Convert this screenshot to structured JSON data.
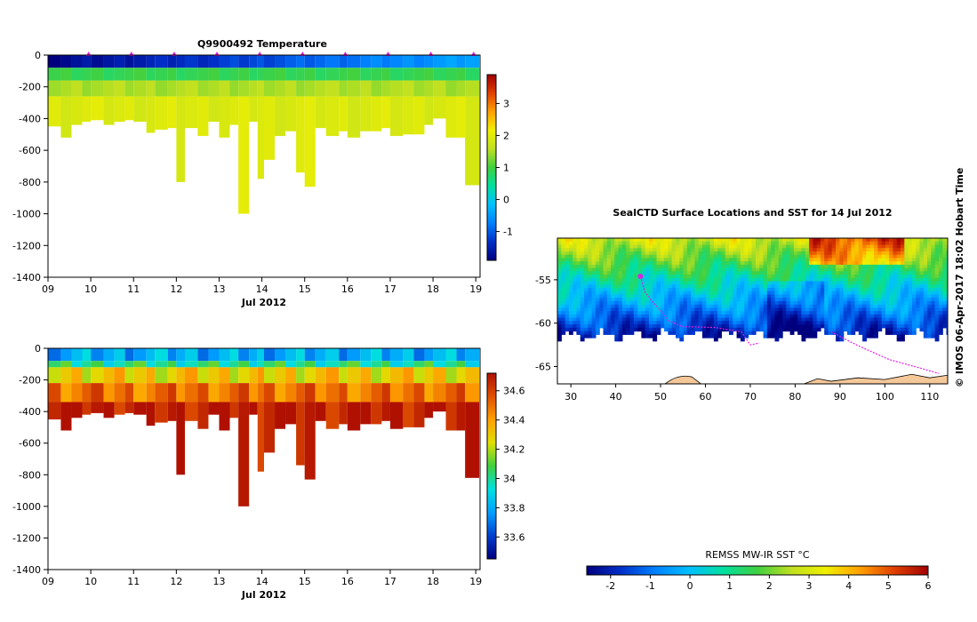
{
  "colors": {
    "temperature_scale": [
      "#00007f",
      "#0030c8",
      "#0080ff",
      "#00c0ff",
      "#00e0a0",
      "#40d040",
      "#c0e020",
      "#f0f000",
      "#ffa000",
      "#e04000",
      "#a00000"
    ],
    "salinity_scale": [
      "#00007f",
      "#0040d0",
      "#00a0ff",
      "#00e0e0",
      "#40d040",
      "#e0e000",
      "#ffa000",
      "#e05000",
      "#b01000"
    ],
    "sst_scale": [
      "#00007f",
      "#0030c8",
      "#0080ff",
      "#00c0ff",
      "#00e0a0",
      "#40d040",
      "#c0e020",
      "#f0f000",
      "#ffa000",
      "#e04000",
      "#a00000"
    ],
    "track": "#e020e0",
    "land": "#f5c89a",
    "frame": "#000000"
  },
  "chart_data": [
    {
      "type": "heatmap",
      "title": "Q9900492  Temperature",
      "xlabel": "Jul 2012",
      "ylabel": "",
      "xlim": [
        9,
        19.1
      ],
      "ylim": [
        -1400,
        0
      ],
      "x_ticks": [
        "09",
        "10",
        "11",
        "12",
        "13",
        "14",
        "15",
        "16",
        "17",
        "18",
        "19"
      ],
      "y_ticks": [
        "0",
        "-200",
        "-400",
        "-600",
        "-800",
        "-1000",
        "-1200",
        "-1400"
      ],
      "profile_markers_day": [
        10,
        11,
        12,
        13,
        14,
        15,
        16,
        17,
        18,
        19
      ],
      "profile_days": [
        9.0,
        9.3,
        9.55,
        9.8,
        10.0,
        10.3,
        10.55,
        10.8,
        11.0,
        11.3,
        11.5,
        11.8,
        12.0,
        12.2,
        12.5,
        12.75,
        13.0,
        13.25,
        13.45,
        13.7,
        13.9,
        14.05,
        14.3,
        14.55,
        14.8,
        15.0,
        15.25,
        15.5,
        15.8,
        16.0,
        16.3,
        16.55,
        16.8,
        17.0,
        17.3,
        17.55,
        17.8,
        18.0,
        18.3,
        18.55,
        18.75
      ],
      "profile_max_depth": [
        -450,
        -520,
        -440,
        -420,
        -410,
        -440,
        -420,
        -410,
        -420,
        -490,
        -470,
        -460,
        -800,
        -460,
        -510,
        -420,
        -520,
        -440,
        -1000,
        -420,
        -780,
        -660,
        -510,
        -480,
        -740,
        -830,
        -460,
        -510,
        -480,
        -520,
        -480,
        -480,
        -460,
        -510,
        -500,
        -500,
        -440,
        -400,
        -520,
        -520,
        -820
      ],
      "layers": [
        {
          "from": 0,
          "to": -80,
          "value": -1.5,
          "note": "surface layer, -1.8 early to -0.5 late"
        },
        {
          "from": -80,
          "to": -160,
          "value": 0.9
        },
        {
          "from": -160,
          "to": -260,
          "value": 1.5
        },
        {
          "from": -260,
          "to": "bottom",
          "value": 1.9
        }
      ],
      "colorbar": {
        "min": -1.9,
        "max": 3.9,
        "ticks": [
          "3",
          "2",
          "1",
          "0",
          "-1"
        ],
        "tick_values": [
          3,
          2,
          1,
          0,
          -1
        ]
      }
    },
    {
      "type": "heatmap",
      "title": "",
      "xlabel": "Jul 2012",
      "ylabel": "",
      "xlim": [
        9,
        19.1
      ],
      "ylim": [
        -1400,
        0
      ],
      "x_ticks": [
        "09",
        "10",
        "11",
        "12",
        "13",
        "14",
        "15",
        "16",
        "17",
        "18",
        "19"
      ],
      "y_ticks": [
        "0",
        "-200",
        "-400",
        "-600",
        "-800",
        "-1000",
        "-1200",
        "-1400"
      ],
      "layers": [
        {
          "from": 0,
          "to": -80,
          "value": 33.8
        },
        {
          "from": -80,
          "to": -120,
          "value": 34.0
        },
        {
          "from": -120,
          "to": -220,
          "value": 34.3
        },
        {
          "from": -220,
          "to": -340,
          "value": 34.5
        },
        {
          "from": -340,
          "to": "bottom",
          "value": 34.7
        }
      ],
      "colorbar": {
        "min": 33.45,
        "max": 34.72,
        "ticks": [
          "34.6",
          "34.4",
          "34.2",
          "34",
          "33.8",
          "33.6"
        ],
        "tick_values": [
          34.6,
          34.4,
          34.2,
          34.0,
          33.8,
          33.6
        ]
      }
    },
    {
      "type": "heatmap",
      "title": "SealCTD Surface Locations and SST for 14 Jul 2012",
      "xlabel": "",
      "ylabel": "",
      "xlim": [
        27,
        114
      ],
      "ylim": [
        -67,
        -50.2
      ],
      "x_ticks": [
        "30",
        "40",
        "50",
        "60",
        "70",
        "80",
        "90",
        "100",
        "110"
      ],
      "x_tick_values": [
        30,
        40,
        50,
        60,
        70,
        80,
        90,
        100,
        110
      ],
      "y_ticks": [
        "-55",
        "-60",
        "-65"
      ],
      "y_tick_values": [
        -55,
        -60,
        -65
      ],
      "seal_track": [
        [
          45.5,
          -54.6
        ],
        [
          46.5,
          -56.4
        ],
        [
          48.5,
          -57.7
        ],
        [
          50.5,
          -58.8
        ],
        [
          52,
          -59.8
        ],
        [
          55,
          -60.4
        ],
        [
          62,
          -60.5
        ],
        [
          68,
          -61
        ],
        [
          70,
          -62.5
        ],
        [
          72,
          -62.3
        ]
      ],
      "seal_track_east": [
        [
          88,
          -61
        ],
        [
          94,
          -62.6
        ],
        [
          101,
          -64.2
        ],
        [
          108,
          -65.2
        ],
        [
          112,
          -65.8
        ]
      ],
      "start_point": [
        45.5,
        -54.6
      ],
      "colorbar": {
        "label": "REMSS MW-IR SST °C",
        "min": -2.6,
        "max": 6.0,
        "ticks": [
          "-2",
          "-1",
          "0",
          "1",
          "2",
          "3",
          "4",
          "5",
          "6"
        ],
        "tick_values": [
          -2,
          -1,
          0,
          1,
          2,
          3,
          4,
          5,
          6
        ]
      }
    }
  ],
  "credit": "©  IMOS 06-Apr-2017 18:02 Hobart Time"
}
